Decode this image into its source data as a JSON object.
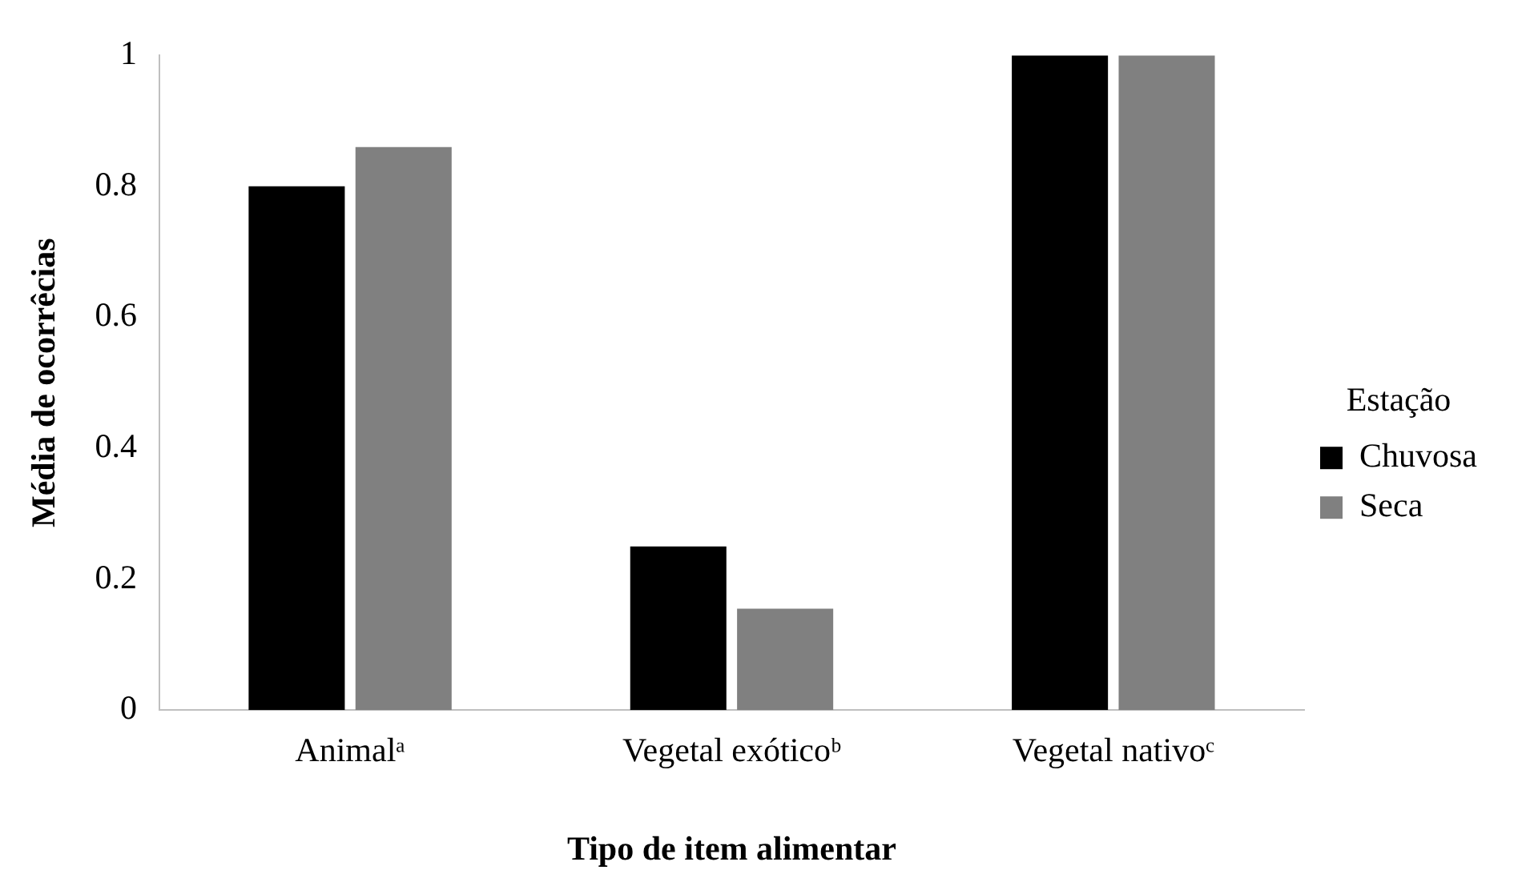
{
  "chart_data": {
    "type": "bar",
    "xlabel": "Tipo de item alimentar",
    "ylabel": "Média de ocorrêcias",
    "legend_title": "Estação",
    "categories": [
      "Animalᵃ",
      "Vegetal exóticoᵇ",
      "Vegetal nativoᶜ"
    ],
    "series": [
      {
        "name": "Chuvosa",
        "color": "#000000",
        "values": [
          0.8,
          0.25,
          1
        ]
      },
      {
        "name": "Seca",
        "color": "#808080",
        "values": [
          0.86,
          0.155,
          1
        ]
      }
    ],
    "ylim": [
      0,
      1
    ],
    "yticks": [
      0,
      0.2,
      0.4,
      0.6,
      0.8,
      1
    ],
    "grid": false,
    "legend": "right"
  }
}
